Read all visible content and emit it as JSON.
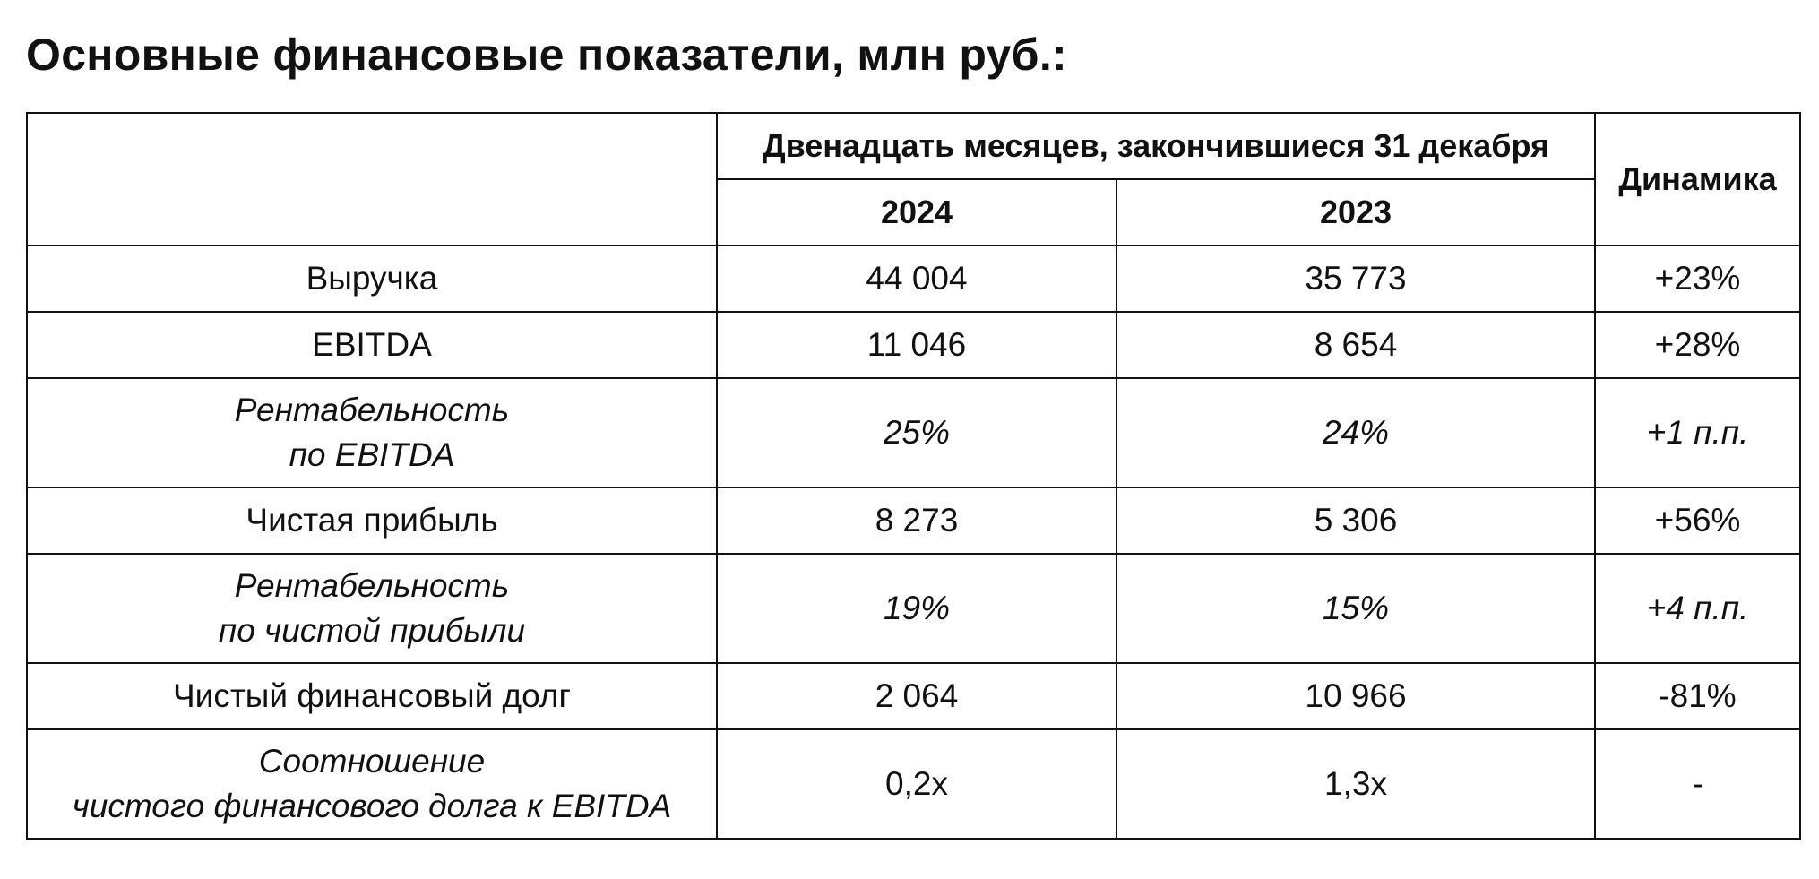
{
  "title": "Основные финансовые показатели, млн руб.:",
  "table": {
    "header_period": "Двенадцать месяцев, закончившиеся 31 декабря",
    "header_year1": "2024",
    "header_year2": "2023",
    "header_dynamics": "Динамика",
    "rows": [
      {
        "label": "Выручка",
        "v2024": "44 004",
        "v2023": "35 773",
        "dyn": "+23%"
      },
      {
        "label": "EBITDA",
        "v2024": "11 046",
        "v2023": "8 654",
        "dyn": "+28%"
      },
      {
        "label_line1": "Рентабельность",
        "label_line2": "по EBITDA",
        "v2024": "25%",
        "v2023": "24%",
        "dyn": "+1 п.п."
      },
      {
        "label": "Чистая прибыль",
        "v2024": "8 273",
        "v2023": "5 306",
        "dyn": "+56%"
      },
      {
        "label_line1": "Рентабельность",
        "label_line2": "по чистой прибыли",
        "v2024": "19%",
        "v2023": "15%",
        "dyn": "+4 п.п."
      },
      {
        "label": "Чистый финансовый долг",
        "v2024": "2 064",
        "v2023": "10 966",
        "dyn": "-81%"
      },
      {
        "label_line1": "Соотношение",
        "label_line2": "чистого финансового долга к EBITDA",
        "v2024": "0,2x",
        "v2023": "1,3x",
        "dyn": "-"
      }
    ]
  }
}
